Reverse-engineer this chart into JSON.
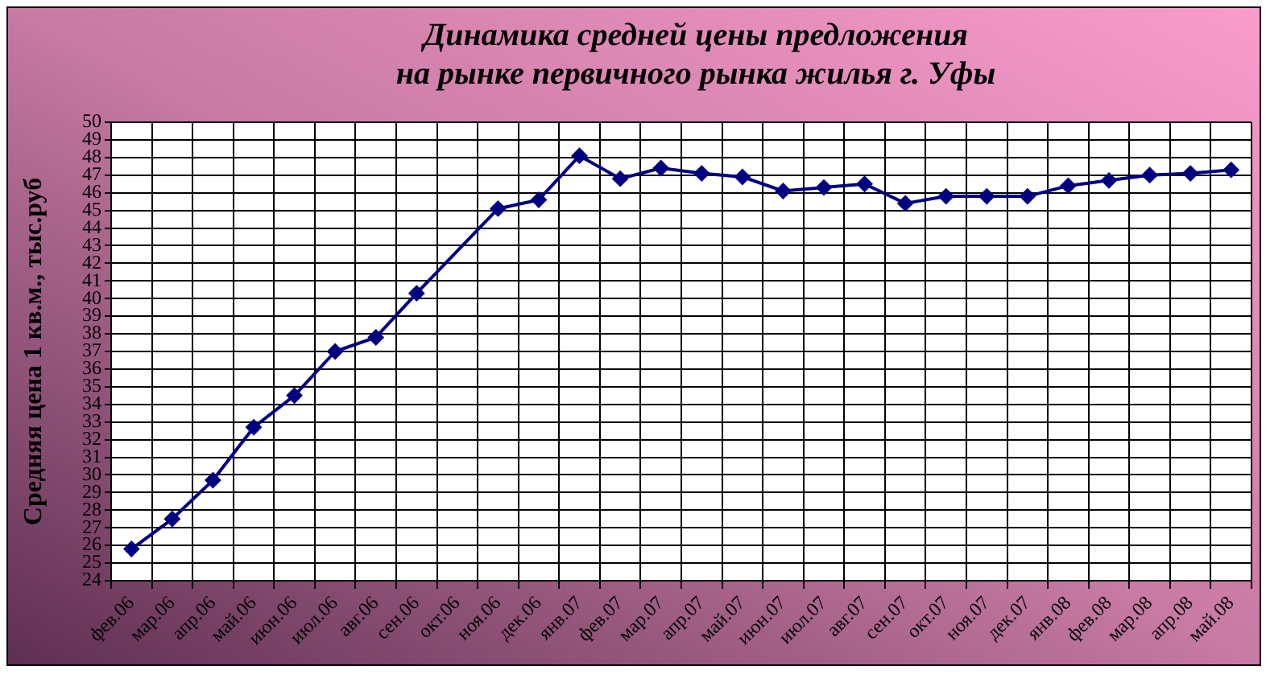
{
  "chart_data": {
    "type": "line",
    "title": "Динамика средней цены предложения\nна рынке первичного рынка жилья г. Уфы",
    "ylabel": "Средняя цена 1 кв.м., тыс.руб",
    "categories": [
      "фев.06",
      "мар.06",
      "апр.06",
      "май.06",
      "июн.06",
      "июл.06",
      "авг.06",
      "сен.06",
      "окт.06",
      "ноя.06",
      "дек.06",
      "янв.07",
      "фев.07",
      "мар.07",
      "апр.07",
      "май.07",
      "июн.07",
      "июл.07",
      "авг.07",
      "сен.07",
      "окт.07",
      "ноя.07",
      "дек.07",
      "янв.08",
      "фев.08",
      "мар.08",
      "апр.08",
      "май.08"
    ],
    "values": [
      25.8,
      27.5,
      29.7,
      32.7,
      34.5,
      37.0,
      37.8,
      40.3,
      null,
      45.1,
      45.6,
      48.1,
      46.8,
      47.4,
      47.1,
      46.9,
      46.1,
      46.3,
      46.5,
      45.4,
      45.8,
      45.8,
      45.8,
      46.4,
      46.7,
      47.0,
      47.1,
      47.3
    ],
    "color": "#000080",
    "ylim": [
      24,
      50
    ],
    "yticks": [
      24,
      25,
      26,
      27,
      28,
      29,
      30,
      31,
      32,
      33,
      34,
      35,
      36,
      37,
      38,
      39,
      40,
      41,
      42,
      43,
      44,
      45,
      46,
      47,
      48,
      49,
      50
    ],
    "grid": true,
    "legend": false,
    "marker": "diamond",
    "line_style": "solid"
  }
}
